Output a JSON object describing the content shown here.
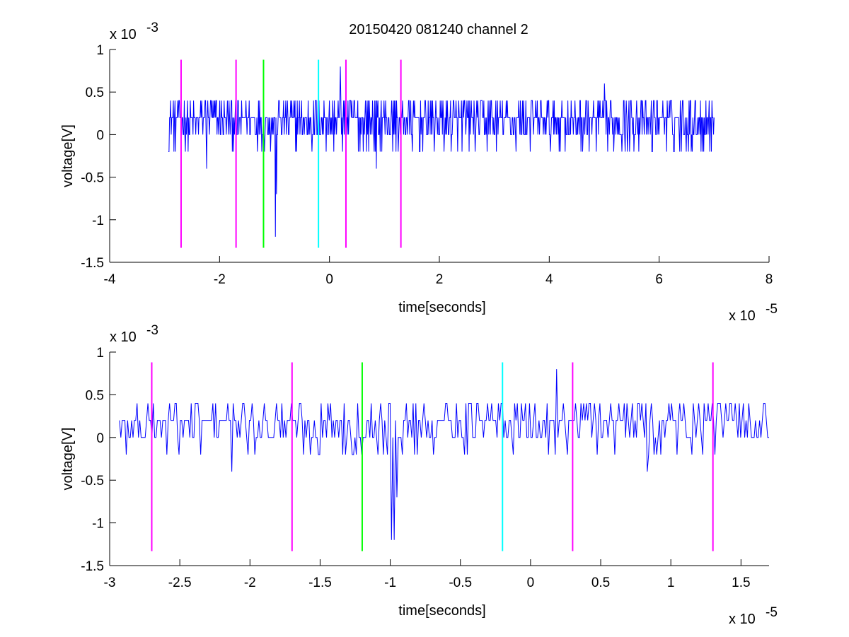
{
  "title": "20150420 081240 channel 2",
  "chart_data": [
    {
      "type": "line",
      "xlabel": "time[seconds]",
      "ylabel": "voltage[V]",
      "x_multiplier": "x 10",
      "x_multiplier_exp": "-5",
      "y_multiplier": "x 10",
      "y_multiplier_exp": "-3",
      "xlim": [
        -4e-05,
        8e-05
      ],
      "ylim": [
        -0.0015,
        0.001
      ],
      "xticks": [
        -4,
        -2,
        0,
        2,
        4,
        6,
        8
      ],
      "xtick_labels": [
        "-4",
        "-2",
        "0",
        "2",
        "4",
        "6",
        "8"
      ],
      "yticks": [
        -1.5,
        -1,
        -0.5,
        0,
        0.5,
        1
      ],
      "ytick_labels": [
        "-1.5",
        "-1",
        "-0.5",
        "0",
        "0.5",
        "1"
      ],
      "grid": false,
      "series": [
        {
          "color": "#0000ff",
          "x_range": [
            -2.93e-05,
            7e-05
          ],
          "baseline": 0.0002,
          "levels": [
            -0.0002,
            0,
            0.0002,
            0.0004
          ],
          "events": [
            {
              "x": -2.23e-05,
              "y": -0.0004
            },
            {
              "x": -9.8e-06,
              "y": -0.0012
            },
            {
              "x": -9.6e-06,
              "y": -0.0007
            },
            {
              "x": 2e-06,
              "y": 0.0008
            },
            {
              "x": 8.5e-06,
              "y": -0.0004
            },
            {
              "x": 5e-05,
              "y": 0.0006
            }
          ]
        }
      ],
      "vlines": [
        {
          "x": -2.7e-05,
          "color": "#ff00ff",
          "y_range": [
            -0.00133,
            0.00088
          ]
        },
        {
          "x": -1.7e-05,
          "color": "#ff00ff",
          "y_range": [
            -0.00133,
            0.00088
          ]
        },
        {
          "x": -1.2e-05,
          "color": "#00ff00",
          "y_range": [
            -0.00133,
            0.00088
          ]
        },
        {
          "x": -2e-06,
          "color": "#00ffff",
          "y_range": [
            -0.00133,
            0.00088
          ]
        },
        {
          "x": 3e-06,
          "color": "#ff00ff",
          "y_range": [
            -0.00133,
            0.00088
          ]
        },
        {
          "x": 1.3e-05,
          "color": "#ff00ff",
          "y_range": [
            -0.00133,
            0.00088
          ]
        }
      ]
    },
    {
      "type": "line",
      "xlabel": "time[seconds]",
      "ylabel": "voltage[V]",
      "x_multiplier": "x 10",
      "x_multiplier_exp": "-5",
      "y_multiplier": "x 10",
      "y_multiplier_exp": "-3",
      "xlim": [
        -3e-05,
        1.7e-05
      ],
      "ylim": [
        -0.0015,
        0.001
      ],
      "xticks": [
        -3,
        -2.5,
        -2,
        -1.5,
        -1,
        -0.5,
        0,
        0.5,
        1,
        1.5
      ],
      "xtick_labels": [
        "-3",
        "-2.5",
        "-2",
        "-1.5",
        "-1",
        "-0.5",
        "0",
        "0.5",
        "1",
        "1.5"
      ],
      "yticks": [
        -1.5,
        -1,
        -0.5,
        0,
        0.5,
        1
      ],
      "ytick_labels": [
        "-1.5",
        "-1",
        "-0.5",
        "0",
        "0.5",
        "1"
      ],
      "grid": false,
      "series": [
        {
          "color": "#0000ff",
          "x_range": [
            -2.93e-05,
            1.7e-05
          ],
          "baseline": 0.0002,
          "levels": [
            -0.0002,
            0,
            0.0002,
            0.0004
          ],
          "events": [
            {
              "x": -2.88e-05,
              "y": -0.0002
            },
            {
              "x": -2.13e-05,
              "y": -0.0004
            },
            {
              "x": -9.9e-06,
              "y": -0.0012
            },
            {
              "x": -9.7e-06,
              "y": -0.0012
            },
            {
              "x": -9.5e-06,
              "y": -0.0007
            },
            {
              "x": 1.9e-06,
              "y": 0.0008
            },
            {
              "x": 8.3e-06,
              "y": -0.0004
            }
          ]
        }
      ],
      "vlines": [
        {
          "x": -2.7e-05,
          "color": "#ff00ff",
          "y_range": [
            -0.00133,
            0.00088
          ]
        },
        {
          "x": -1.7e-05,
          "color": "#ff00ff",
          "y_range": [
            -0.00133,
            0.00088
          ]
        },
        {
          "x": -1.2e-05,
          "color": "#00ff00",
          "y_range": [
            -0.00133,
            0.00088
          ]
        },
        {
          "x": -2e-06,
          "color": "#00ffff",
          "y_range": [
            -0.00133,
            0.00088
          ]
        },
        {
          "x": 3e-06,
          "color": "#ff00ff",
          "y_range": [
            -0.00133,
            0.00088
          ]
        },
        {
          "x": 1.3e-05,
          "color": "#ff00ff",
          "y_range": [
            -0.00133,
            0.00088
          ]
        }
      ]
    }
  ]
}
